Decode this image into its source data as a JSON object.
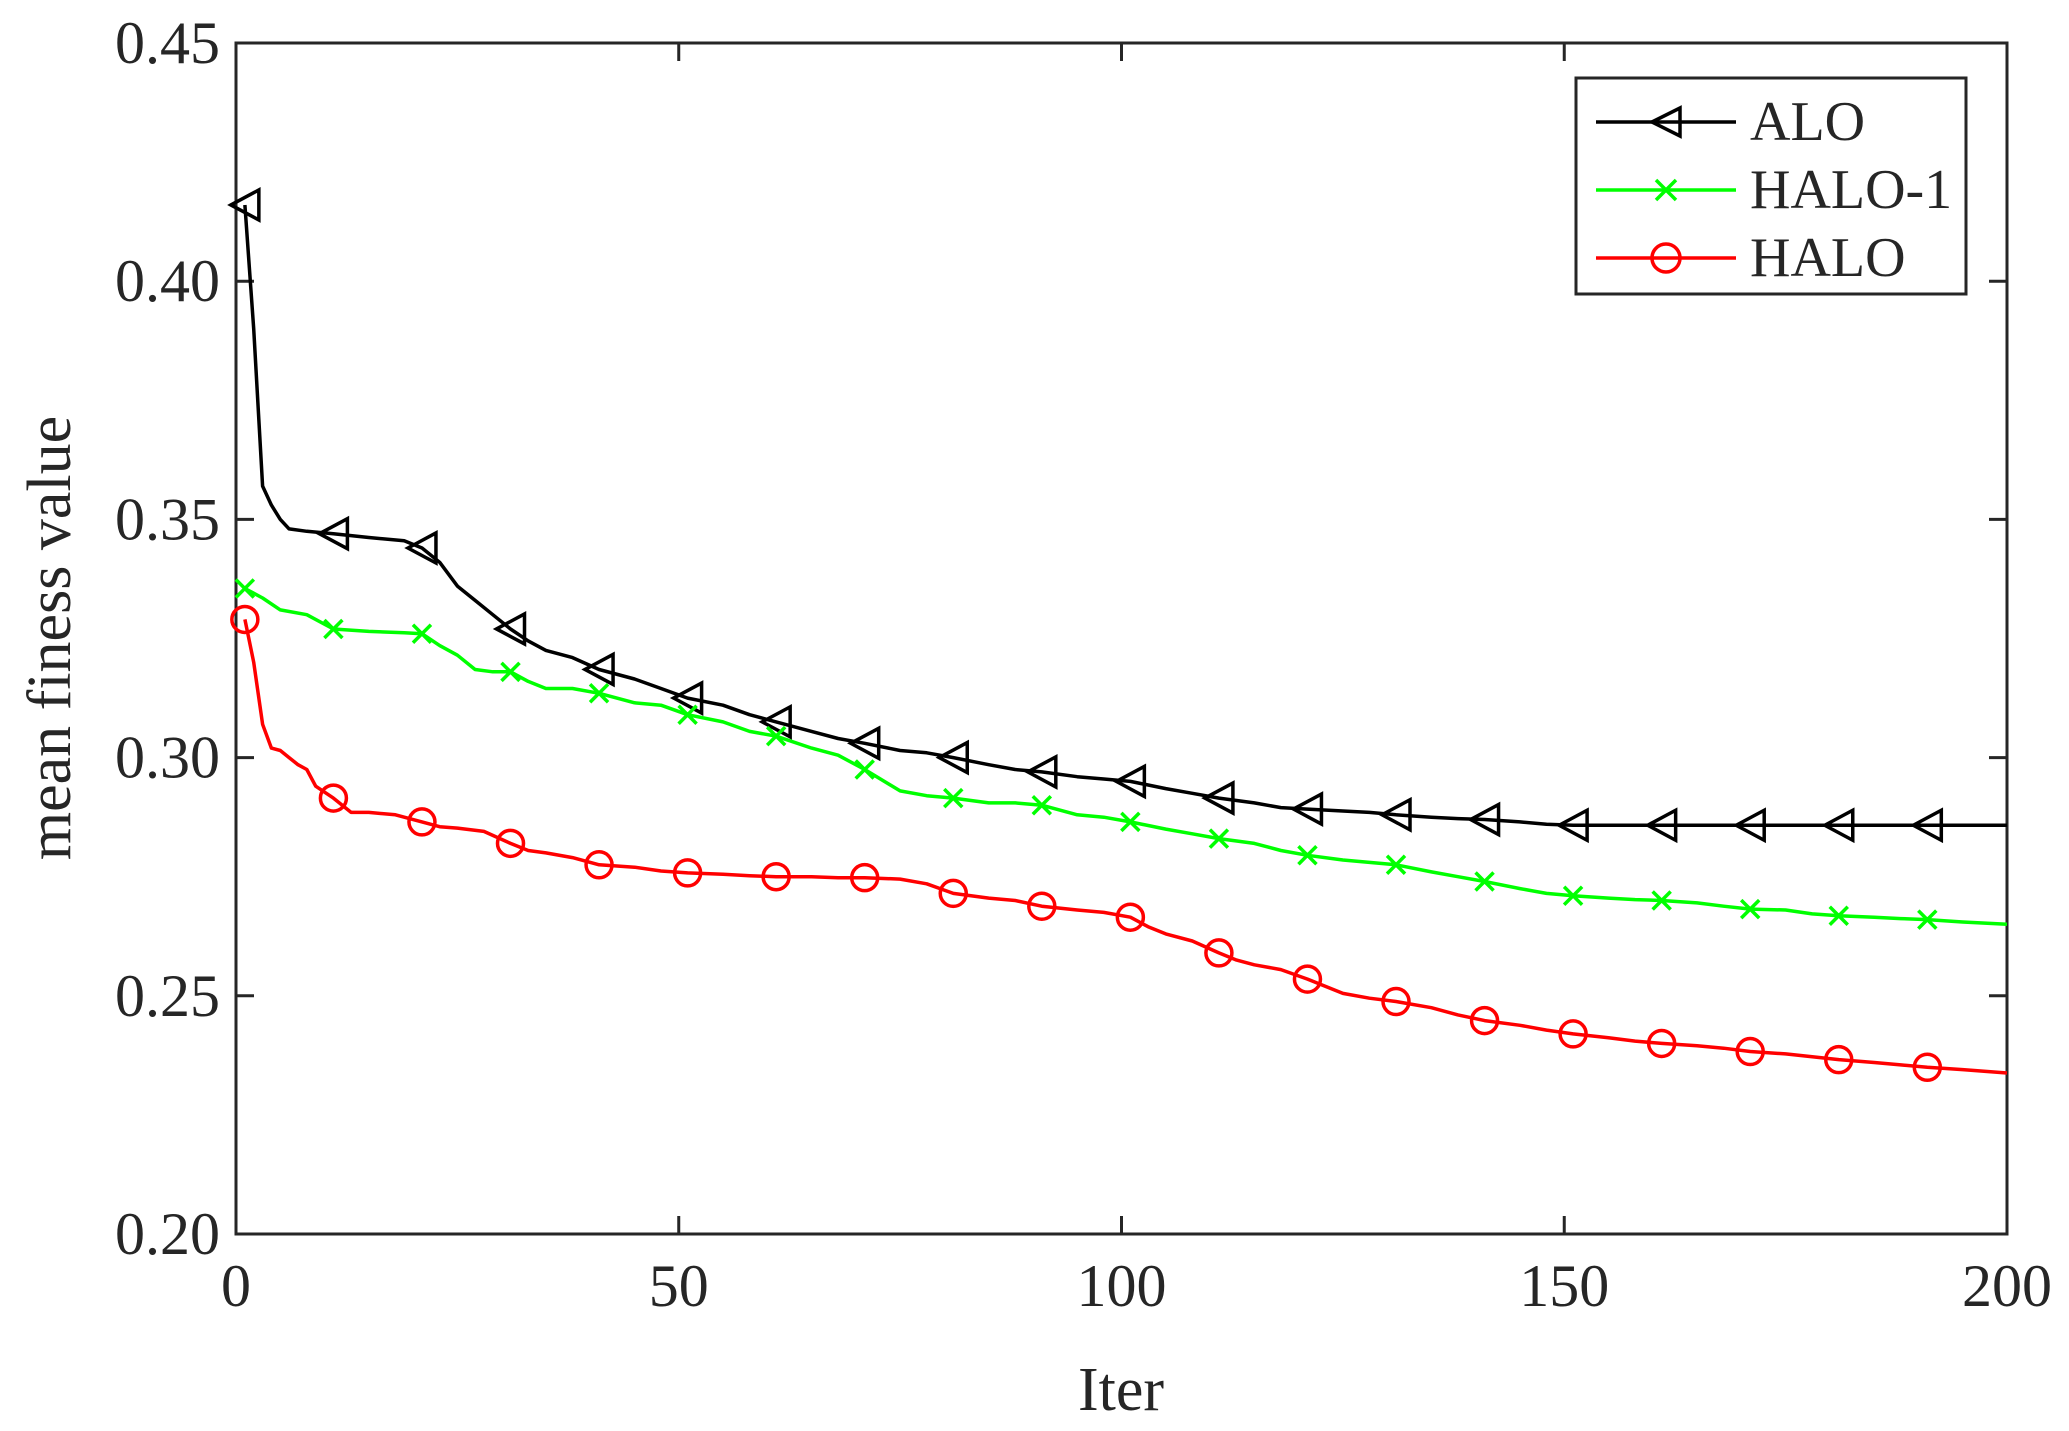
{
  "chart_data": {
    "type": "line",
    "title": "",
    "xlabel": "Iter",
    "ylabel": "mean finess value",
    "xlim": [
      0,
      200
    ],
    "ylim": [
      0.2,
      0.45
    ],
    "xticks": [
      0,
      50,
      100,
      150,
      200
    ],
    "xtick_labels": [
      "0",
      "50",
      "100",
      "150",
      "200"
    ],
    "yticks": [
      0.2,
      0.25,
      0.3,
      0.35,
      0.4,
      0.45
    ],
    "ytick_labels": [
      "0.20",
      "0.25",
      "0.30",
      "0.35",
      "0.40",
      "0.45"
    ],
    "grid": false,
    "legend_position": "top-right",
    "series": [
      {
        "name": "ALO",
        "color": "#000000",
        "marker": "triangle-left",
        "x": [
          1,
          2,
          3,
          4,
          5,
          6,
          8,
          11,
          15,
          19,
          21,
          23,
          25,
          27,
          29,
          31,
          33,
          35,
          38,
          41,
          45,
          48,
          51,
          55,
          58,
          61,
          65,
          68,
          71,
          75,
          78,
          81,
          85,
          88,
          91,
          95,
          98,
          101,
          105,
          108,
          111,
          115,
          118,
          121,
          125,
          128,
          131,
          135,
          138,
          141,
          145,
          148,
          151,
          155,
          160,
          165,
          170,
          175,
          180,
          185,
          191,
          195,
          200
        ],
        "y": [
          0.416,
          0.39,
          0.357,
          0.353,
          0.35,
          0.348,
          0.3475,
          0.347,
          0.3462,
          0.3455,
          0.344,
          0.341,
          0.336,
          0.333,
          0.33,
          0.327,
          0.3245,
          0.3225,
          0.321,
          0.3185,
          0.3165,
          0.3145,
          0.3125,
          0.311,
          0.309,
          0.3075,
          0.3055,
          0.304,
          0.303,
          0.3015,
          0.301,
          0.3,
          0.2985,
          0.2975,
          0.297,
          0.296,
          0.2955,
          0.295,
          0.2935,
          0.2925,
          0.2915,
          0.2905,
          0.2895,
          0.2892,
          0.2888,
          0.2885,
          0.288,
          0.2875,
          0.2872,
          0.287,
          0.2865,
          0.286,
          0.2858,
          0.2858,
          0.2858,
          0.2858,
          0.2858,
          0.2858,
          0.2858,
          0.2858,
          0.2858,
          0.2858,
          0.2858
        ],
        "marker_x": [
          1,
          11,
          21,
          31,
          41,
          51,
          61,
          71,
          81,
          91,
          101,
          111,
          121,
          131,
          141,
          151,
          161,
          171,
          181,
          191
        ]
      },
      {
        "name": "HALO-1",
        "color": "#00ff00",
        "marker": "x",
        "x": [
          1,
          3,
          5,
          8,
          11,
          15,
          19,
          21,
          23,
          25,
          27,
          29,
          31,
          33,
          35,
          38,
          41,
          45,
          48,
          51,
          55,
          58,
          61,
          65,
          68,
          71,
          75,
          78,
          81,
          85,
          88,
          91,
          95,
          98,
          101,
          105,
          108,
          111,
          115,
          118,
          121,
          125,
          128,
          131,
          135,
          138,
          141,
          145,
          148,
          151,
          155,
          158,
          161,
          165,
          168,
          171,
          175,
          178,
          181,
          185,
          188,
          191,
          195,
          200
        ],
        "y": [
          0.3355,
          0.3335,
          0.331,
          0.33,
          0.327,
          0.3265,
          0.3262,
          0.326,
          0.3235,
          0.3215,
          0.3185,
          0.318,
          0.318,
          0.316,
          0.3145,
          0.3145,
          0.3135,
          0.3115,
          0.311,
          0.309,
          0.3075,
          0.3055,
          0.3045,
          0.302,
          0.3005,
          0.2975,
          0.293,
          0.292,
          0.2915,
          0.2905,
          0.2905,
          0.29,
          0.288,
          0.2875,
          0.2865,
          0.285,
          0.284,
          0.283,
          0.282,
          0.2805,
          0.2795,
          0.2785,
          0.278,
          0.2775,
          0.276,
          0.275,
          0.274,
          0.2725,
          0.2715,
          0.271,
          0.2705,
          0.2702,
          0.27,
          0.2695,
          0.2688,
          0.2682,
          0.268,
          0.2672,
          0.2668,
          0.2665,
          0.2662,
          0.266,
          0.2655,
          0.265
        ],
        "marker_x": [
          1,
          11,
          21,
          31,
          41,
          51,
          61,
          71,
          81,
          91,
          101,
          111,
          121,
          131,
          141,
          151,
          161,
          171,
          181,
          191
        ]
      },
      {
        "name": "HALO",
        "color": "#ff0000",
        "marker": "circle",
        "x": [
          1,
          2,
          3,
          4,
          5,
          6,
          7,
          8,
          9,
          11,
          13,
          15,
          18,
          21,
          23,
          25,
          28,
          31,
          33,
          35,
          38,
          41,
          45,
          48,
          51,
          55,
          58,
          61,
          65,
          68,
          71,
          75,
          78,
          81,
          85,
          88,
          91,
          95,
          98,
          101,
          103,
          105,
          108,
          111,
          113,
          115,
          118,
          121,
          123,
          125,
          128,
          131,
          135,
          138,
          141,
          145,
          148,
          151,
          155,
          158,
          161,
          165,
          168,
          171,
          175,
          178,
          181,
          185,
          188,
          191,
          195,
          200
        ],
        "y": [
          0.329,
          0.32,
          0.307,
          0.302,
          0.3015,
          0.3,
          0.2985,
          0.2975,
          0.294,
          0.2915,
          0.2885,
          0.2885,
          0.288,
          0.2865,
          0.2855,
          0.2852,
          0.2845,
          0.282,
          0.2805,
          0.28,
          0.279,
          0.2775,
          0.277,
          0.2762,
          0.2758,
          0.2755,
          0.2752,
          0.275,
          0.275,
          0.2748,
          0.2748,
          0.2745,
          0.2735,
          0.2715,
          0.2705,
          0.27,
          0.2688,
          0.268,
          0.2675,
          0.2665,
          0.2645,
          0.263,
          0.2615,
          0.259,
          0.2575,
          0.2565,
          0.2555,
          0.2535,
          0.252,
          0.2505,
          0.2495,
          0.2488,
          0.2475,
          0.246,
          0.2448,
          0.2438,
          0.2428,
          0.242,
          0.2412,
          0.2405,
          0.24,
          0.2395,
          0.239,
          0.2383,
          0.2378,
          0.2372,
          0.2366,
          0.236,
          0.2355,
          0.235,
          0.2345,
          0.2338
        ],
        "marker_x": [
          1,
          11,
          21,
          31,
          41,
          51,
          61,
          71,
          81,
          91,
          101,
          111,
          121,
          131,
          141,
          151,
          161,
          171,
          181,
          191
        ]
      }
    ]
  }
}
